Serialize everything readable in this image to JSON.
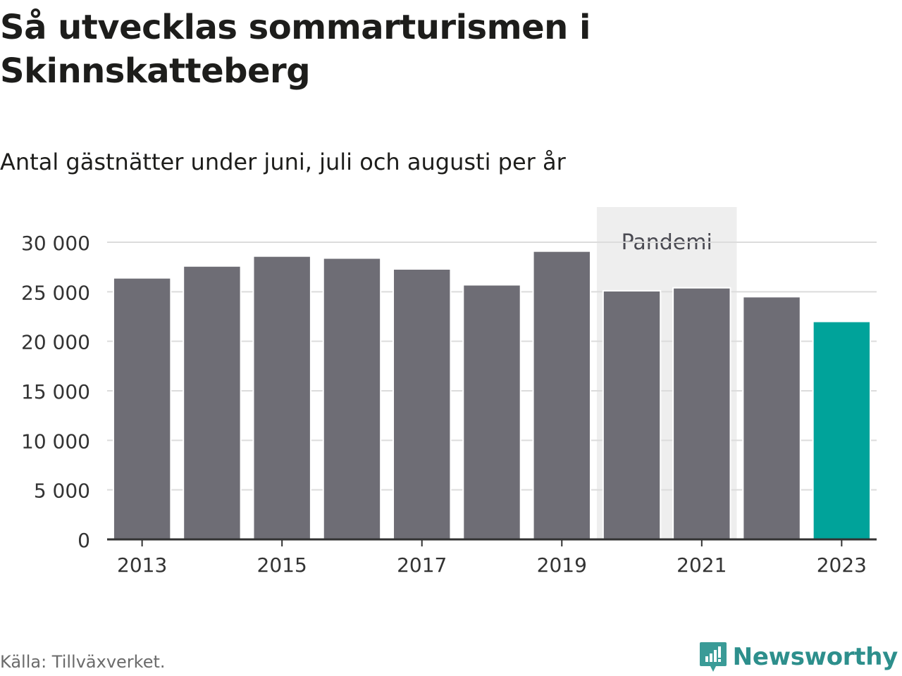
{
  "header": {
    "title": "Så utvecklas sommarturismen i Skinnskatteberg",
    "subtitle": "Antal gästnätter under juni, juli och augusti per år"
  },
  "footer": {
    "source": "Källa: Tillväxverket.",
    "brand": "Newsworthy",
    "brand_icon": "newsworthy-logo-icon"
  },
  "colors": {
    "bar": "#6e6d75",
    "highlight": "#00a39a",
    "band": "#eeeeee",
    "grid": "#dcdcdc",
    "axis": "#333333",
    "brand": "#2d8f8c"
  },
  "chart_data": {
    "type": "bar",
    "categories": [
      2013,
      2014,
      2015,
      2016,
      2017,
      2018,
      2019,
      2020,
      2021,
      2022,
      2023
    ],
    "values": [
      26400,
      27600,
      28600,
      28400,
      27300,
      25700,
      29100,
      25100,
      25400,
      24500,
      22000
    ],
    "highlight_category": 2023,
    "ylim": [
      0,
      30000
    ],
    "yticks": [
      0,
      5000,
      10000,
      15000,
      20000,
      25000,
      30000
    ],
    "ytick_labels": [
      "0",
      "5 000",
      "10 000",
      "15 000",
      "20 000",
      "25 000",
      "30 000"
    ],
    "xticks": [
      2013,
      2015,
      2017,
      2019,
      2021,
      2023
    ],
    "xtick_labels": [
      "2013",
      "2015",
      "2017",
      "2019",
      "2021",
      "2023"
    ],
    "grid": true,
    "annotations": [
      {
        "label": "Pandemi",
        "from": 2020,
        "to": 2021
      }
    ]
  }
}
